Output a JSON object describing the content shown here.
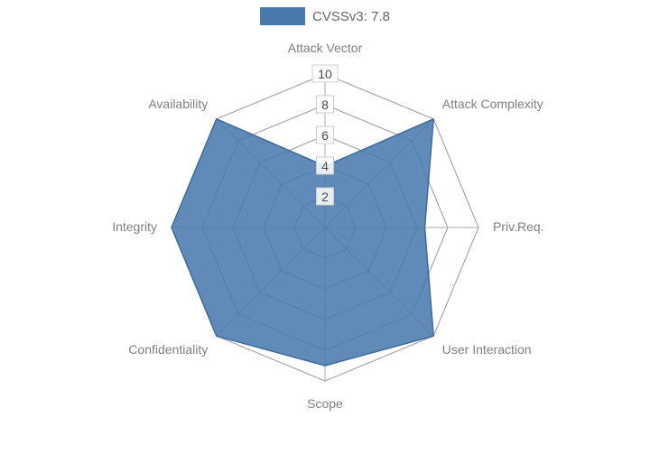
{
  "chart_data": {
    "type": "radar",
    "legend": "CVSSv3: 7.8",
    "score": 7.8,
    "categories": [
      "Attack Vector",
      "Attack Complexity",
      "Priv.Req.",
      "User Interaction",
      "Scope",
      "Confidentiality",
      "Integrity",
      "Availability"
    ],
    "series": [
      {
        "name": "CVSSv3: 7.8",
        "values": [
          4,
          10,
          6.5,
          10,
          9,
          10,
          10,
          10
        ]
      }
    ],
    "radial_ticks": [
      2,
      4,
      6,
      8,
      10
    ],
    "rlim": [
      0,
      10
    ],
    "grid": true,
    "legend_position": "top-center",
    "colors": {
      "fill": "#4a7aad",
      "stroke": "#3d6b9e",
      "fill_opacity": "0.88",
      "grid": "#999999",
      "spoke": "#aaaaaa",
      "axis_label": "#7f7f7f",
      "tick_text": "#4d4d4d",
      "tick_box_fill": "#ffffff",
      "tick_box_border": "#cccccc",
      "background": "#ffffff"
    }
  }
}
